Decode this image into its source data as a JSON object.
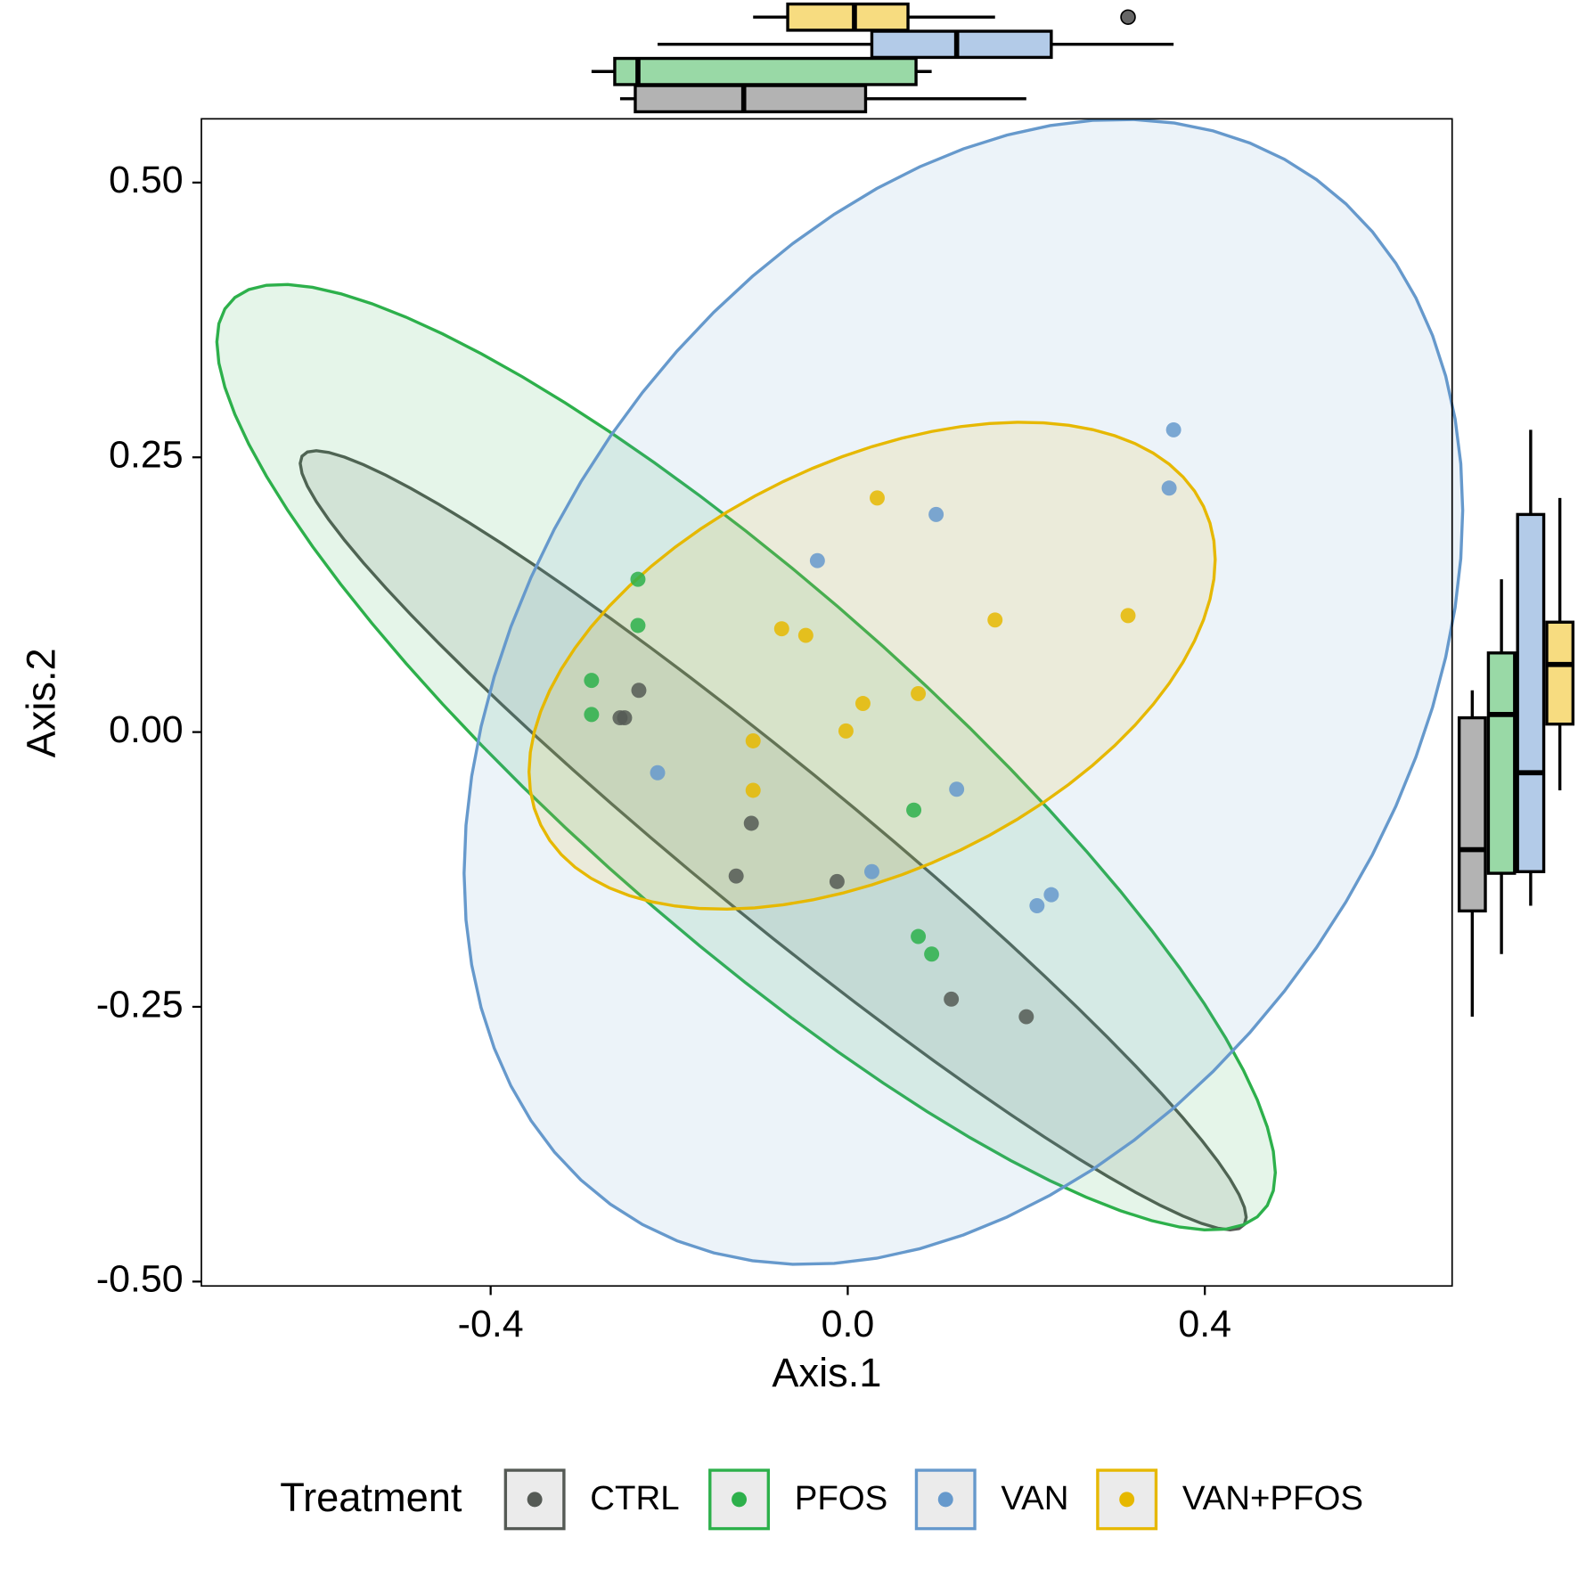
{
  "chart_data": {
    "type": "scatter",
    "x_label": "Axis.1",
    "y_label": "Axis.2",
    "legend_title": "Treatment",
    "legend_position": "bottom",
    "xlim": [
      -0.724,
      0.677
    ],
    "ylim": [
      -0.504,
      0.558
    ],
    "xticks": [
      {
        "value": -0.4,
        "label": "-0.4"
      },
      {
        "value": 0,
        "label": "0.0"
      },
      {
        "value": 0.4,
        "label": "0.4"
      }
    ],
    "yticks": [
      {
        "value": -0.5,
        "label": "-0.50"
      },
      {
        "value": -0.25,
        "label": "-0.25"
      },
      {
        "value": 0,
        "label": "0.00"
      },
      {
        "value": 0.25,
        "label": "0.25"
      },
      {
        "value": 0.5,
        "label": "0.50"
      }
    ],
    "series": [
      {
        "name": "CTRL",
        "color": "#555a55",
        "fill": "#b3b3b3",
        "x": [
          -0.234,
          -0.255,
          -0.25,
          -0.108,
          -0.125,
          -0.012,
          0.116,
          0.2
        ],
        "y": [
          0.038,
          0.013,
          0.013,
          -0.083,
          -0.131,
          -0.136,
          -0.243,
          -0.259
        ]
      },
      {
        "name": "PFOS",
        "color": "#2db04b",
        "fill": "#99d9a6",
        "x": [
          -0.235,
          -0.235,
          -0.287,
          -0.287,
          0.074,
          0.079,
          0.094
        ],
        "y": [
          0.139,
          0.097,
          0.047,
          0.016,
          -0.071,
          -0.186,
          -0.202
        ]
      },
      {
        "name": "VAN",
        "color": "#6699cc",
        "fill": "#b3cbe8",
        "x": [
          0.365,
          0.36,
          0.099,
          -0.034,
          -0.213,
          0.122,
          0.027,
          0.228,
          0.212
        ],
        "y": [
          0.275,
          0.222,
          0.198,
          0.156,
          -0.037,
          -0.052,
          -0.127,
          -0.148,
          -0.158
        ]
      },
      {
        "name": "VAN+PFOS",
        "color": "#e6b800",
        "fill": "#f7dc80",
        "x": [
          0.033,
          0.165,
          0.314,
          -0.074,
          -0.047,
          0.079,
          0.017,
          -0.002,
          -0.106,
          -0.106
        ],
        "y": [
          0.213,
          0.102,
          0.106,
          0.094,
          0.088,
          0.035,
          0.026,
          0.001,
          -0.008,
          -0.053
        ]
      }
    ]
  }
}
